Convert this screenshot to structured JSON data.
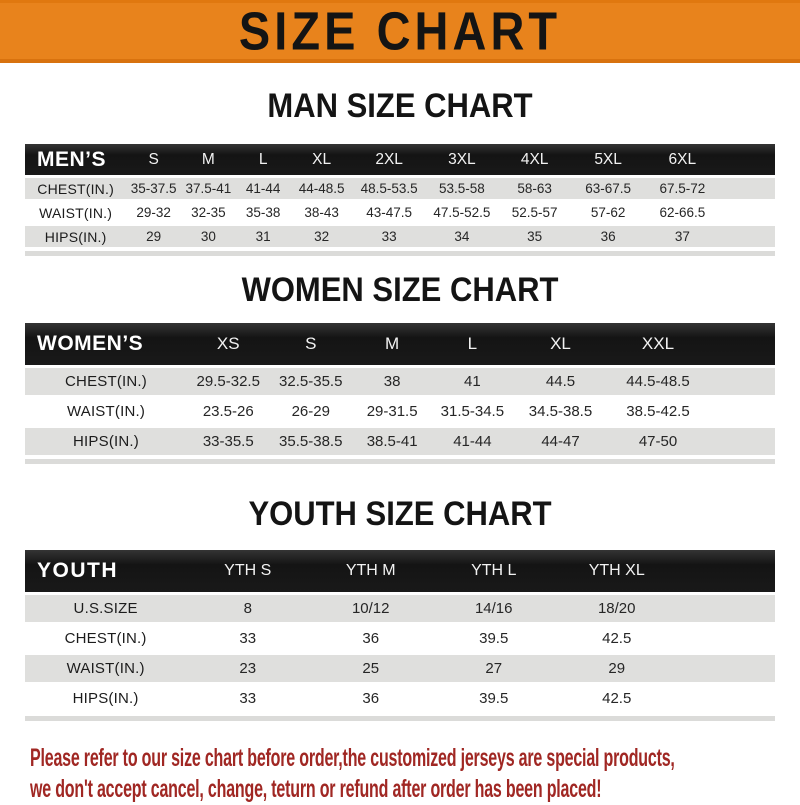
{
  "banner": {
    "title": "SIZE CHART"
  },
  "sections": [
    {
      "id": "men",
      "heading": "MAN SIZE CHART",
      "header_label": "MEN’S",
      "columns": [
        "S",
        "M",
        "L",
        "XL",
        "2XL",
        "3XL",
        "4XL",
        "5XL",
        "6XL"
      ],
      "rows": [
        {
          "label": "CHEST(IN.)",
          "values": [
            "35-37.5",
            "37.5-41",
            "41-44",
            "44-48.5",
            "48.5-53.5",
            "53.5-58",
            "58-63",
            "63-67.5",
            "67.5-72"
          ]
        },
        {
          "label": "WAIST(IN.)",
          "values": [
            "29-32",
            "32-35",
            "35-38",
            "38-43",
            "43-47.5",
            "47.5-52.5",
            "52.5-57",
            "57-62",
            "62-66.5"
          ]
        },
        {
          "label": "HIPS(IN.)",
          "values": [
            "29",
            "30",
            "31",
            "32",
            "33",
            "34",
            "35",
            "36",
            "37"
          ]
        }
      ]
    },
    {
      "id": "women",
      "heading": "WOMEN SIZE CHART",
      "header_label": "WOMEN’S",
      "columns": [
        "XS",
        "S",
        "M",
        "L",
        "XL",
        "XXL"
      ],
      "rows": [
        {
          "label": "CHEST(IN.)",
          "values": [
            "29.5-32.5",
            "32.5-35.5",
            "38",
            "41",
            "44.5",
            "44.5-48.5"
          ]
        },
        {
          "label": "WAIST(IN.)",
          "values": [
            "23.5-26",
            "26-29",
            "29-31.5",
            "31.5-34.5",
            "34.5-38.5",
            "38.5-42.5"
          ]
        },
        {
          "label": "HIPS(IN.)",
          "values": [
            "33-35.5",
            "35.5-38.5",
            "38.5-41",
            "41-44",
            "44-47",
            "47-50"
          ]
        }
      ]
    },
    {
      "id": "youth",
      "heading": "YOUTH SIZE CHART",
      "header_label": "YOUTH",
      "columns": [
        "YTH S",
        "YTH M",
        "YTH L",
        "YTH XL"
      ],
      "rows": [
        {
          "label": "U.S.SIZE",
          "values": [
            "8",
            "10/12",
            "14/16",
            "18/20"
          ]
        },
        {
          "label": "CHEST(IN.)",
          "values": [
            "33",
            "36",
            "39.5",
            "42.5"
          ]
        },
        {
          "label": "WAIST(IN.)",
          "values": [
            "23",
            "25",
            "27",
            "29"
          ]
        },
        {
          "label": "HIPS(IN.)",
          "values": [
            "33",
            "36",
            "39.5",
            "42.5"
          ]
        }
      ]
    }
  ],
  "footer": {
    "lines": [
      "Please refer to our size chart before order,the customized jerseys are special products,",
      "we don't accept cancel, change, teturn or refund after order has been placed!"
    ]
  },
  "colors": {
    "banner_bg": "#E8831C",
    "header_bar": "#1A1A1A",
    "row_gray": "#DFDFDD",
    "note_red": "#A02723",
    "heading_black": "#141414"
  }
}
